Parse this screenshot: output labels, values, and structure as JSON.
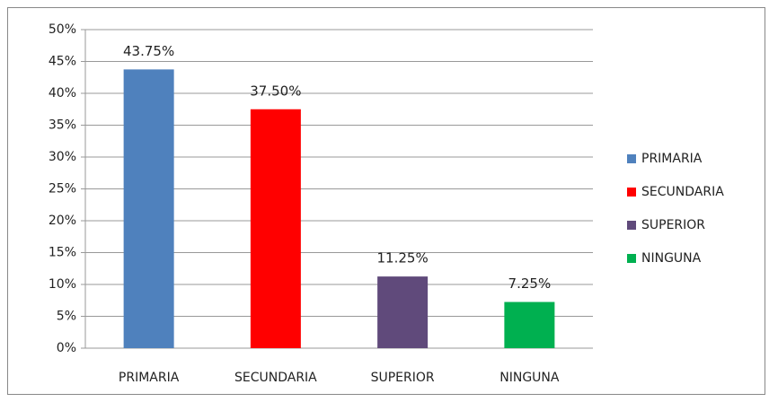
{
  "chart_data": {
    "type": "bar",
    "categories": [
      "PRIMARIA",
      "SECUNDARIA",
      "SUPERIOR",
      "NINGUNA"
    ],
    "values": [
      43.75,
      37.5,
      11.25,
      7.25
    ],
    "value_labels": [
      "43.75%",
      "37.50%",
      "11.25%",
      "7.25%"
    ],
    "colors": [
      "#4f81bd",
      "#ff0000",
      "#604a7b",
      "#00b050"
    ],
    "ylim": [
      0,
      50
    ],
    "yticks": [
      {
        "value": 0,
        "label": "0%"
      },
      {
        "value": 5,
        "label": "5%"
      },
      {
        "value": 10,
        "label": "10%"
      },
      {
        "value": 15,
        "label": "15%"
      },
      {
        "value": 20,
        "label": "20%"
      },
      {
        "value": 25,
        "label": "25%"
      },
      {
        "value": 30,
        "label": "30%"
      },
      {
        "value": 35,
        "label": "35%"
      },
      {
        "value": 40,
        "label": "40%"
      },
      {
        "value": 45,
        "label": "45%"
      },
      {
        "value": 50,
        "label": "50%"
      }
    ],
    "grid": true,
    "legend": "right"
  }
}
